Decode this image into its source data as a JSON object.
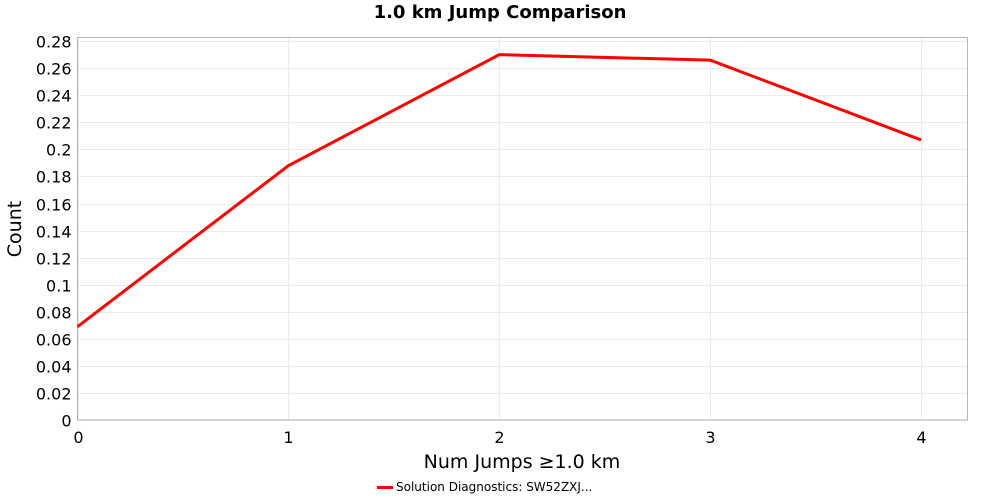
{
  "chart_data": {
    "type": "line",
    "title": "1.0 km Jump Comparison",
    "xlabel": "Num Jumps ≥1.0 km",
    "ylabel": "Count",
    "xlim": [
      0,
      4.22
    ],
    "ylim": [
      0,
      0.2827
    ],
    "xticks": [
      "0",
      "1",
      "2",
      "3",
      "4"
    ],
    "xtick_values": [
      0,
      1,
      2,
      3,
      4
    ],
    "yticks": [
      "0",
      "0.02",
      "0.04",
      "0.06",
      "0.08",
      "0.1",
      "0.12",
      "0.14",
      "0.16",
      "0.18",
      "0.2",
      "0.22",
      "0.24",
      "0.26",
      "0.28"
    ],
    "ytick_values": [
      0,
      0.02,
      0.04,
      0.06,
      0.08,
      0.1,
      0.12,
      0.14,
      0.16,
      0.18,
      0.2,
      0.22,
      0.24,
      0.26,
      0.28
    ],
    "grid": true,
    "legend_position": "bottom-center",
    "series": [
      {
        "name": "Solution Diagnostics: SW52ZXJ...",
        "color": "#ff0000",
        "x": [
          0,
          1,
          2,
          3,
          4
        ],
        "values": [
          0.069,
          0.188,
          0.27,
          0.266,
          0.207
        ]
      }
    ]
  }
}
